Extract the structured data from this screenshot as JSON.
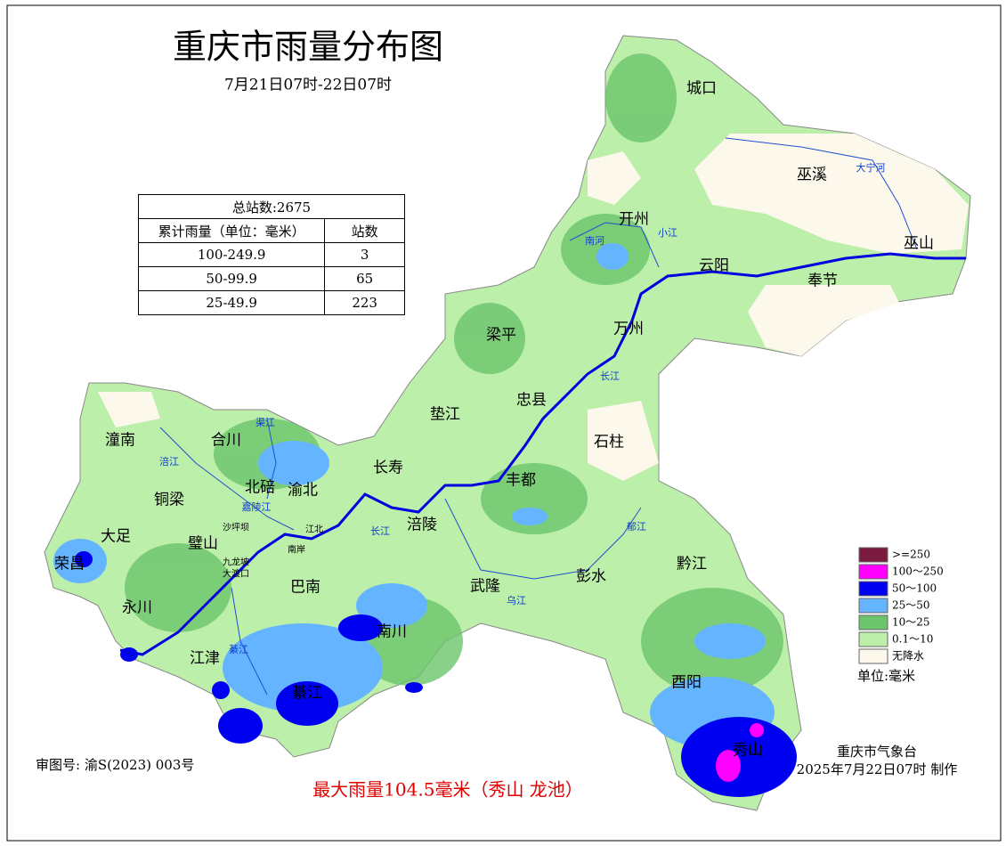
{
  "title": "重庆市雨量分布图",
  "subtitle": "7月21日07时-22日07时",
  "table": {
    "caption": "总站数:2675",
    "header": [
      "累计雨量（单位：毫米）",
      "站数"
    ],
    "rows": [
      [
        "100-249.9",
        3
      ],
      [
        "50-99.9",
        65
      ],
      [
        "25-49.9",
        223
      ]
    ]
  },
  "legend": {
    "items": [
      {
        "label": ">=250",
        "color": "#7b1a3f"
      },
      {
        "label": "100～250",
        "color": "#ff00ff"
      },
      {
        "label": "50～100",
        "color": "#0000f0"
      },
      {
        "label": "25～50",
        "color": "#64b4ff"
      },
      {
        "label": "10～25",
        "color": "#6cc46c"
      },
      {
        "label": "0.1～10",
        "color": "#bcefaa"
      },
      {
        "label": "无降水",
        "color": "#fdf8ec"
      }
    ],
    "unit": "单位:毫米"
  },
  "districts": [
    "城口",
    "巫溪",
    "开州",
    "巫山",
    "云阳",
    "奉节",
    "梁平",
    "万州",
    "忠县",
    "垫江",
    "石柱",
    "潼南",
    "合川",
    "长寿",
    "丰都",
    "北碚",
    "渝北",
    "铜梁",
    "涪陵",
    "大足",
    "璧山",
    "荣昌",
    "黔江",
    "彭水",
    "巴南",
    "武隆",
    "永川",
    "南川",
    "江津",
    "酉阳",
    "綦江",
    "秀山"
  ],
  "urban": [
    "沙坪坝",
    "九龙坡",
    "大渡口",
    "南岸",
    "江北"
  ],
  "rivers": [
    "大宁河",
    "南河",
    "小江",
    "长江",
    "长江",
    "涪江",
    "渠江",
    "嘉陵江",
    "綦江",
    "乌江",
    "郁江"
  ],
  "footer": {
    "review_no": "审图号: 渝S(2023) 003号",
    "max_rain": "最大雨量104.5毫米（秀山 龙池）",
    "producer": "重庆市气象台",
    "made": "2025年7月22日07时 制作"
  }
}
